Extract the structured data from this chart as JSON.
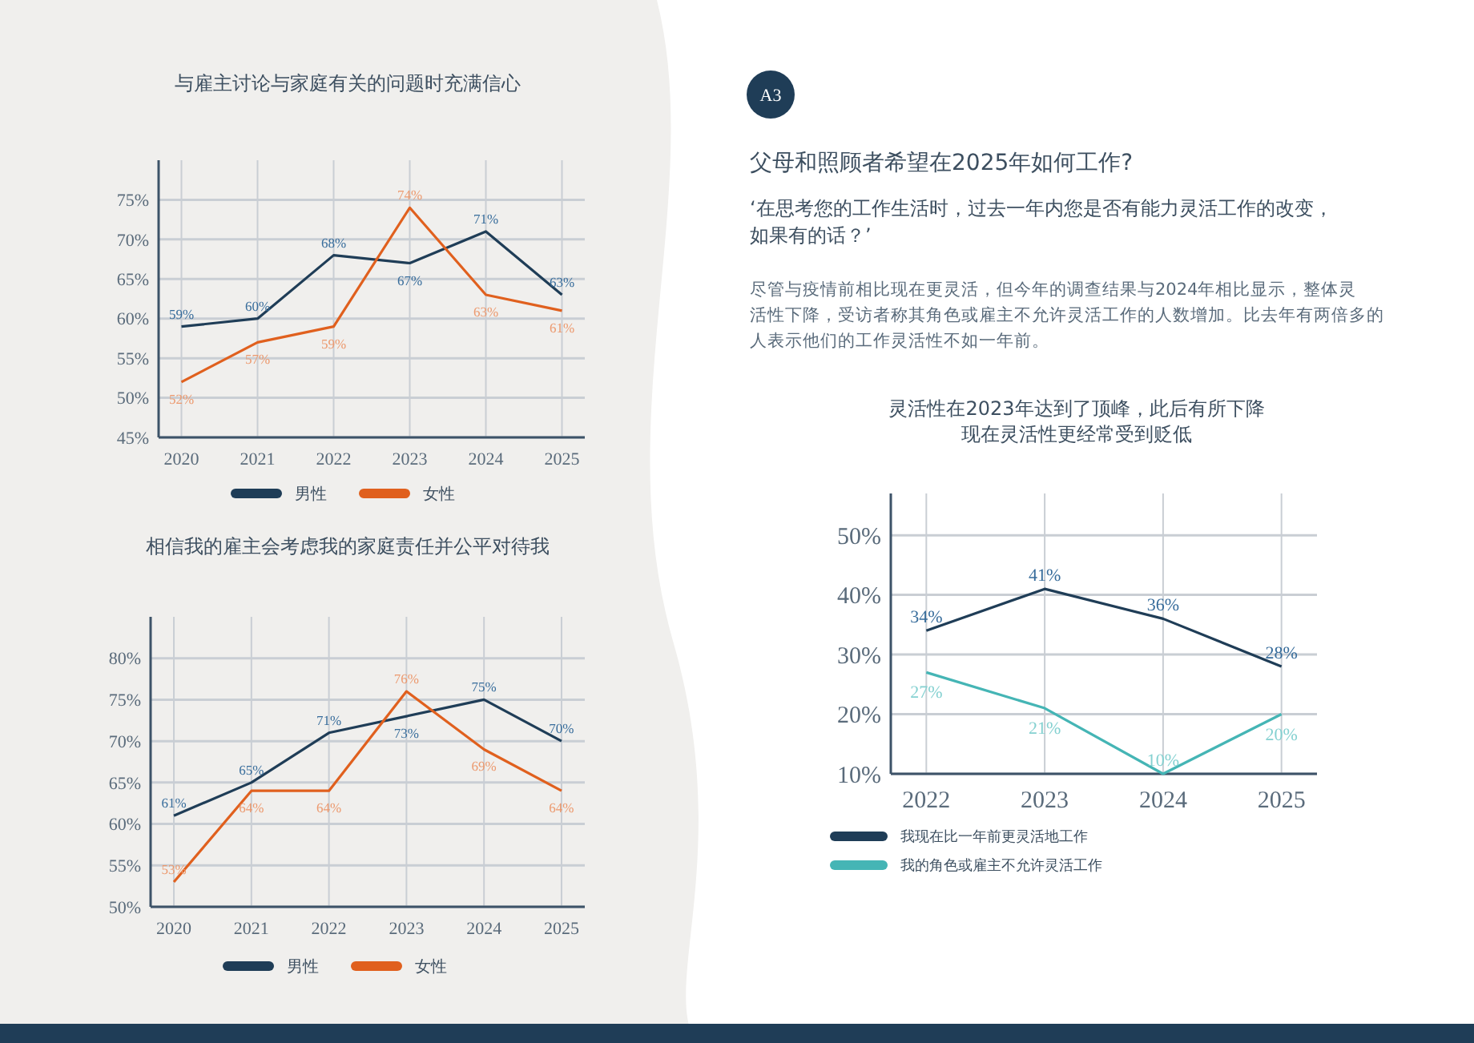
{
  "chart_data": [
    {
      "type": "line",
      "title": "与雇主讨论与家庭有关的问题时充满信心",
      "categories": [
        "2020",
        "2021",
        "2022",
        "2023",
        "2024",
        "2025"
      ],
      "series": [
        {
          "name": "男性",
          "color": "#1f3d57",
          "values": [
            59,
            60,
            68,
            67,
            71,
            63
          ],
          "value_labels": [
            "59%",
            "60%",
            "68%",
            "67%",
            "71%",
            "63%"
          ]
        },
        {
          "name": "女性",
          "color": "#e0601e",
          "values": [
            52,
            57,
            59,
            74,
            63,
            61
          ],
          "value_labels": [
            "52%",
            "57%",
            "59%",
            "74%",
            "63%",
            "61%"
          ]
        }
      ],
      "ylim": [
        45,
        80
      ],
      "yticks": [
        {
          "value": 45,
          "label": "45%"
        },
        {
          "value": 50,
          "label": "50%"
        },
        {
          "value": 55,
          "label": "55%"
        },
        {
          "value": 60,
          "label": "60%"
        },
        {
          "value": 65,
          "label": "65%"
        },
        {
          "value": 70,
          "label": "70%"
        },
        {
          "value": 75,
          "label": "75%"
        }
      ],
      "grid": true,
      "legend": "bottom",
      "marker": "none"
    },
    {
      "type": "line",
      "title": "相信我的雇主会考虑我的家庭责任并公平对待我",
      "categories": [
        "2020",
        "2021",
        "2022",
        "2023",
        "2024",
        "2025"
      ],
      "series": [
        {
          "name": "男性",
          "color": "#1f3d57",
          "values": [
            61,
            65,
            71,
            73,
            75,
            70
          ],
          "value_labels": [
            "61%",
            "65%",
            "71%",
            "73%",
            "75%",
            "70%"
          ]
        },
        {
          "name": "女性",
          "color": "#e0601e",
          "values": [
            53,
            64,
            64,
            76,
            69,
            64
          ],
          "value_labels": [
            "53%",
            "64%",
            "64%",
            "76%",
            "69%",
            "64%"
          ]
        }
      ],
      "ylim": [
        50,
        85
      ],
      "yticks": [
        {
          "value": 50,
          "label": "50%"
        },
        {
          "value": 55,
          "label": "55%"
        },
        {
          "value": 60,
          "label": "60%"
        },
        {
          "value": 65,
          "label": "65%"
        },
        {
          "value": 70,
          "label": "70%"
        },
        {
          "value": 75,
          "label": "75%"
        },
        {
          "value": 80,
          "label": "80%"
        }
      ],
      "grid": true,
      "legend": "bottom",
      "marker": "none"
    },
    {
      "type": "other",
      "title": "父母和照顾者希望在2025年如何工作?",
      "annotations": [
        "A3",
        "‘在思考您的工作生活时，过去一年内您是否有能力灵活工作的改变，如果有的话？’",
        "尽管与疫情前相比现在更灵活，但今年的调查结果与2024年相比显示，整体灵活性下降，受访者称其角色或雇主不允许灵活工作的人数增加。比去年有两倍多的人表示他们的工作灵活性不如一年前。"
      ]
    },
    {
      "type": "line",
      "title": "灵活性在2023年达到了顶峰，此后有所下降",
      "subtitle": "现在灵活性更经常受到贬低",
      "categories": [
        "2022",
        "2023",
        "2024",
        "2025"
      ],
      "series": [
        {
          "name": "我现在比一年前更灵活地工作",
          "color": "#1f3d57",
          "values": [
            34,
            41,
            36,
            28
          ],
          "value_labels": [
            "34%",
            "41%",
            "36%",
            "28%"
          ]
        },
        {
          "name": "我的角色或雇主不允许灵活工作",
          "color": "#45b5b5",
          "values": [
            27,
            21,
            10,
            20
          ],
          "value_labels": [
            "27%",
            "21%",
            "10%",
            "20%"
          ]
        }
      ],
      "ylim": [
        10,
        57
      ],
      "yticks": [
        {
          "value": 10,
          "label": "10%"
        },
        {
          "value": 20,
          "label": "20%"
        },
        {
          "value": 30,
          "label": "30%"
        },
        {
          "value": 40,
          "label": "40%"
        },
        {
          "value": 50,
          "label": "50%"
        }
      ],
      "grid": true,
      "legend": "bottom left",
      "marker": "none"
    }
  ]
}
